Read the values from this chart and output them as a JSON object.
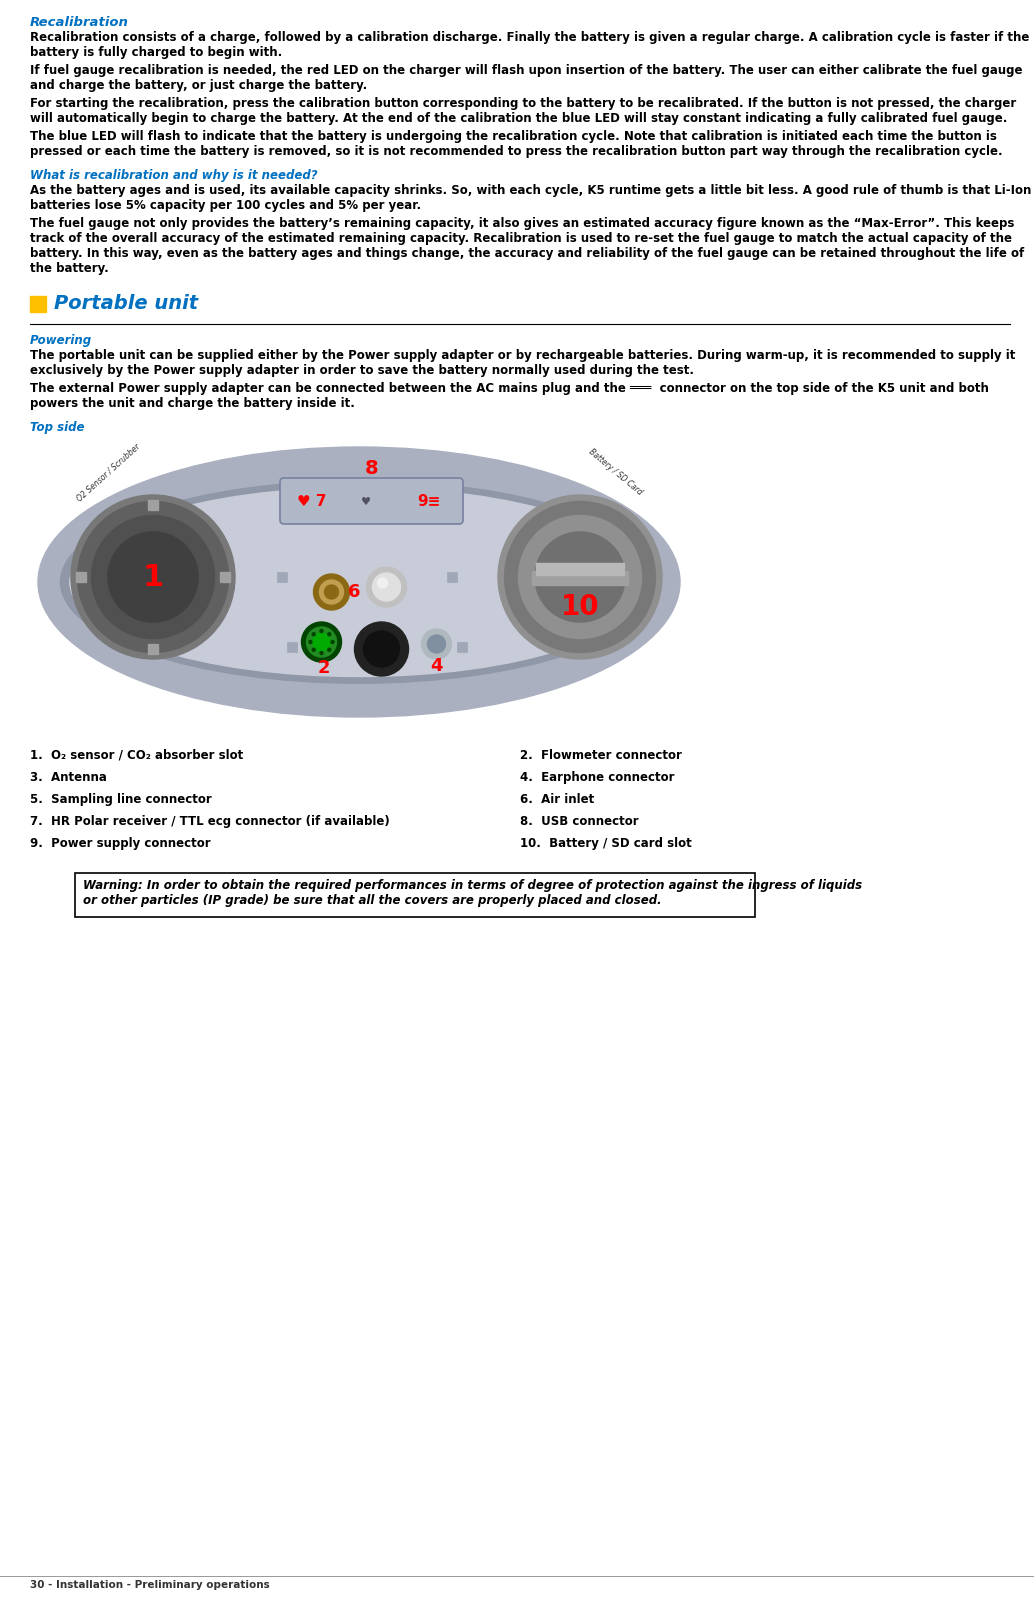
{
  "title_recalibration": "Recalibration",
  "title_recalibration_color": "#0070C0",
  "body_paragraphs": [
    "Recalibration consists of a charge, followed by a calibration discharge. Finally the battery is given a regular charge. A calibration cycle is faster if the\nbattery is fully charged to begin with.",
    "If fuel gauge recalibration is needed, the red LED on the charger will flash upon insertion of the battery. The user can either calibrate the fuel gauge\nand charge the battery, or just charge the battery.",
    "For starting the recalibration, press the calibration button corresponding to the battery to be recalibrated. If the button is not pressed, the charger\nwill automatically begin to charge the battery. At the end of the calibration the blue LED will stay constant indicating a fully calibrated fuel gauge.",
    "The blue LED will flash to indicate that the battery is undergoing the recalibration cycle. Note that calibration is initiated each time the button is\npressed or each time the battery is removed, so it is not recommended to press the recalibration button part way through the recalibration cycle."
  ],
  "subtitle_why": "What is recalibration and why is it needed?",
  "subtitle_why_color": "#0070C0",
  "why_paragraphs": [
    "As the battery ages and is used, its available capacity shrinks. So, with each cycle, K5 runtime gets a little bit less. A good rule of thumb is that Li-Ion\nbatteries lose 5% capacity per 100 cycles and 5% per year.",
    "The fuel gauge not only provides the battery’s remaining capacity, it also gives an estimated accuracy figure known as the “Max-Error”. This keeps\ntrack of the overall accuracy of the estimated remaining capacity. Recalibration is used to re-set the fuel gauge to match the actual capacity of the\nbattery. In this way, even as the battery ages and things change, the accuracy and reliability of the fuel gauge can be retained throughout the life of\nthe battery."
  ],
  "section_title": "Portable unit",
  "section_title_color": "#0070C0",
  "section_square_color": "#FFC000",
  "powering_title": "Powering",
  "powering_title_color": "#0070C0",
  "powering_paragraphs": [
    "The portable unit can be supplied either by the Power supply adapter or by rechargeable batteries. During warm-up, it is recommended to supply it\nexclusively by the Power supply adapter in order to save the battery normally used during the test.",
    "The external Power supply adapter can be connected between the AC mains plug and the ═══  connector on the top side of the K5 unit and both\npowers the unit and charge the battery inside it."
  ],
  "top_side_label": "Top side",
  "top_side_label_color": "#0070C0",
  "numbered_items_left": [
    [
      "1.",
      "O₂ sensor / CO₂ absorber slot"
    ],
    [
      "3.",
      "Antenna"
    ],
    [
      "5.",
      "Sampling line connector"
    ],
    [
      "7.",
      "HR Polar receiver / TTL ecg connector (if available)"
    ],
    [
      "9.",
      "Power supply connector"
    ]
  ],
  "numbered_items_right": [
    [
      "2.",
      "Flowmeter connector"
    ],
    [
      "4.",
      "Earphone connector"
    ],
    [
      "6.",
      "Air inlet"
    ],
    [
      "8.",
      "USB connector"
    ],
    [
      "10.",
      "Battery / SD card slot"
    ]
  ],
  "warning_text": "Warning: In order to obtain the required performances in terms of degree of protection against the ingress of liquids\nor other particles (IP grade) be sure that all the covers are properly placed and closed.",
  "footer_text": "30 - Installation - Preliminary operations",
  "bg_color": "#ffffff",
  "text_color": "#000000",
  "body_font_size": 8.5,
  "title_font_size": 9.5,
  "section_title_font_size": 14
}
